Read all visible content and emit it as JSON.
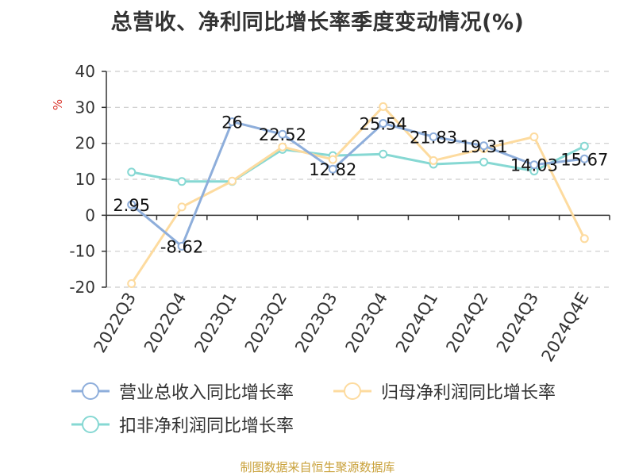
{
  "title": "总营收、净利同比增长率季度变动情况(%)",
  "source": "制图数据来自恒生聚源数据库",
  "chart_data": {
    "type": "line",
    "title": "总营收、净利同比增长率季度变动情况(%)",
    "ylabel": "%",
    "xlabel": "",
    "ylim": [
      -20,
      40
    ],
    "yticks": [
      -20,
      -10,
      0,
      10,
      20,
      30,
      40
    ],
    "grid": true,
    "legend_position": "bottom",
    "categories": [
      "2022Q3",
      "2022Q4",
      "2023Q1",
      "2023Q2",
      "2023Q3",
      "2023Q4",
      "2024Q1",
      "2024Q2",
      "2024Q3",
      "2024Q4E"
    ],
    "series": [
      {
        "name": "营业总收入同比增长率",
        "color": "#8eaedb",
        "values": [
          2.95,
          -8.62,
          26,
          22.52,
          12.82,
          25.54,
          21.83,
          19.31,
          14.03,
          15.67
        ],
        "labels": [
          "2.95",
          "-8.62",
          "26",
          "22.52",
          "12.82",
          "25.54",
          "21.83",
          "19.31",
          "14.03",
          "15.67"
        ]
      },
      {
        "name": "归母净利润同比增长率",
        "color": "#fddb9f",
        "values": [
          -19,
          2.3,
          9.5,
          19,
          15.5,
          30.2,
          15.2,
          18.5,
          21.8,
          -6.5
        ]
      },
      {
        "name": "扣非净利润同比增长率",
        "color": "#86d8d3",
        "values": [
          12,
          9.4,
          9.4,
          18.3,
          16.6,
          17,
          14.2,
          14.8,
          12.3,
          19.2
        ]
      }
    ]
  }
}
